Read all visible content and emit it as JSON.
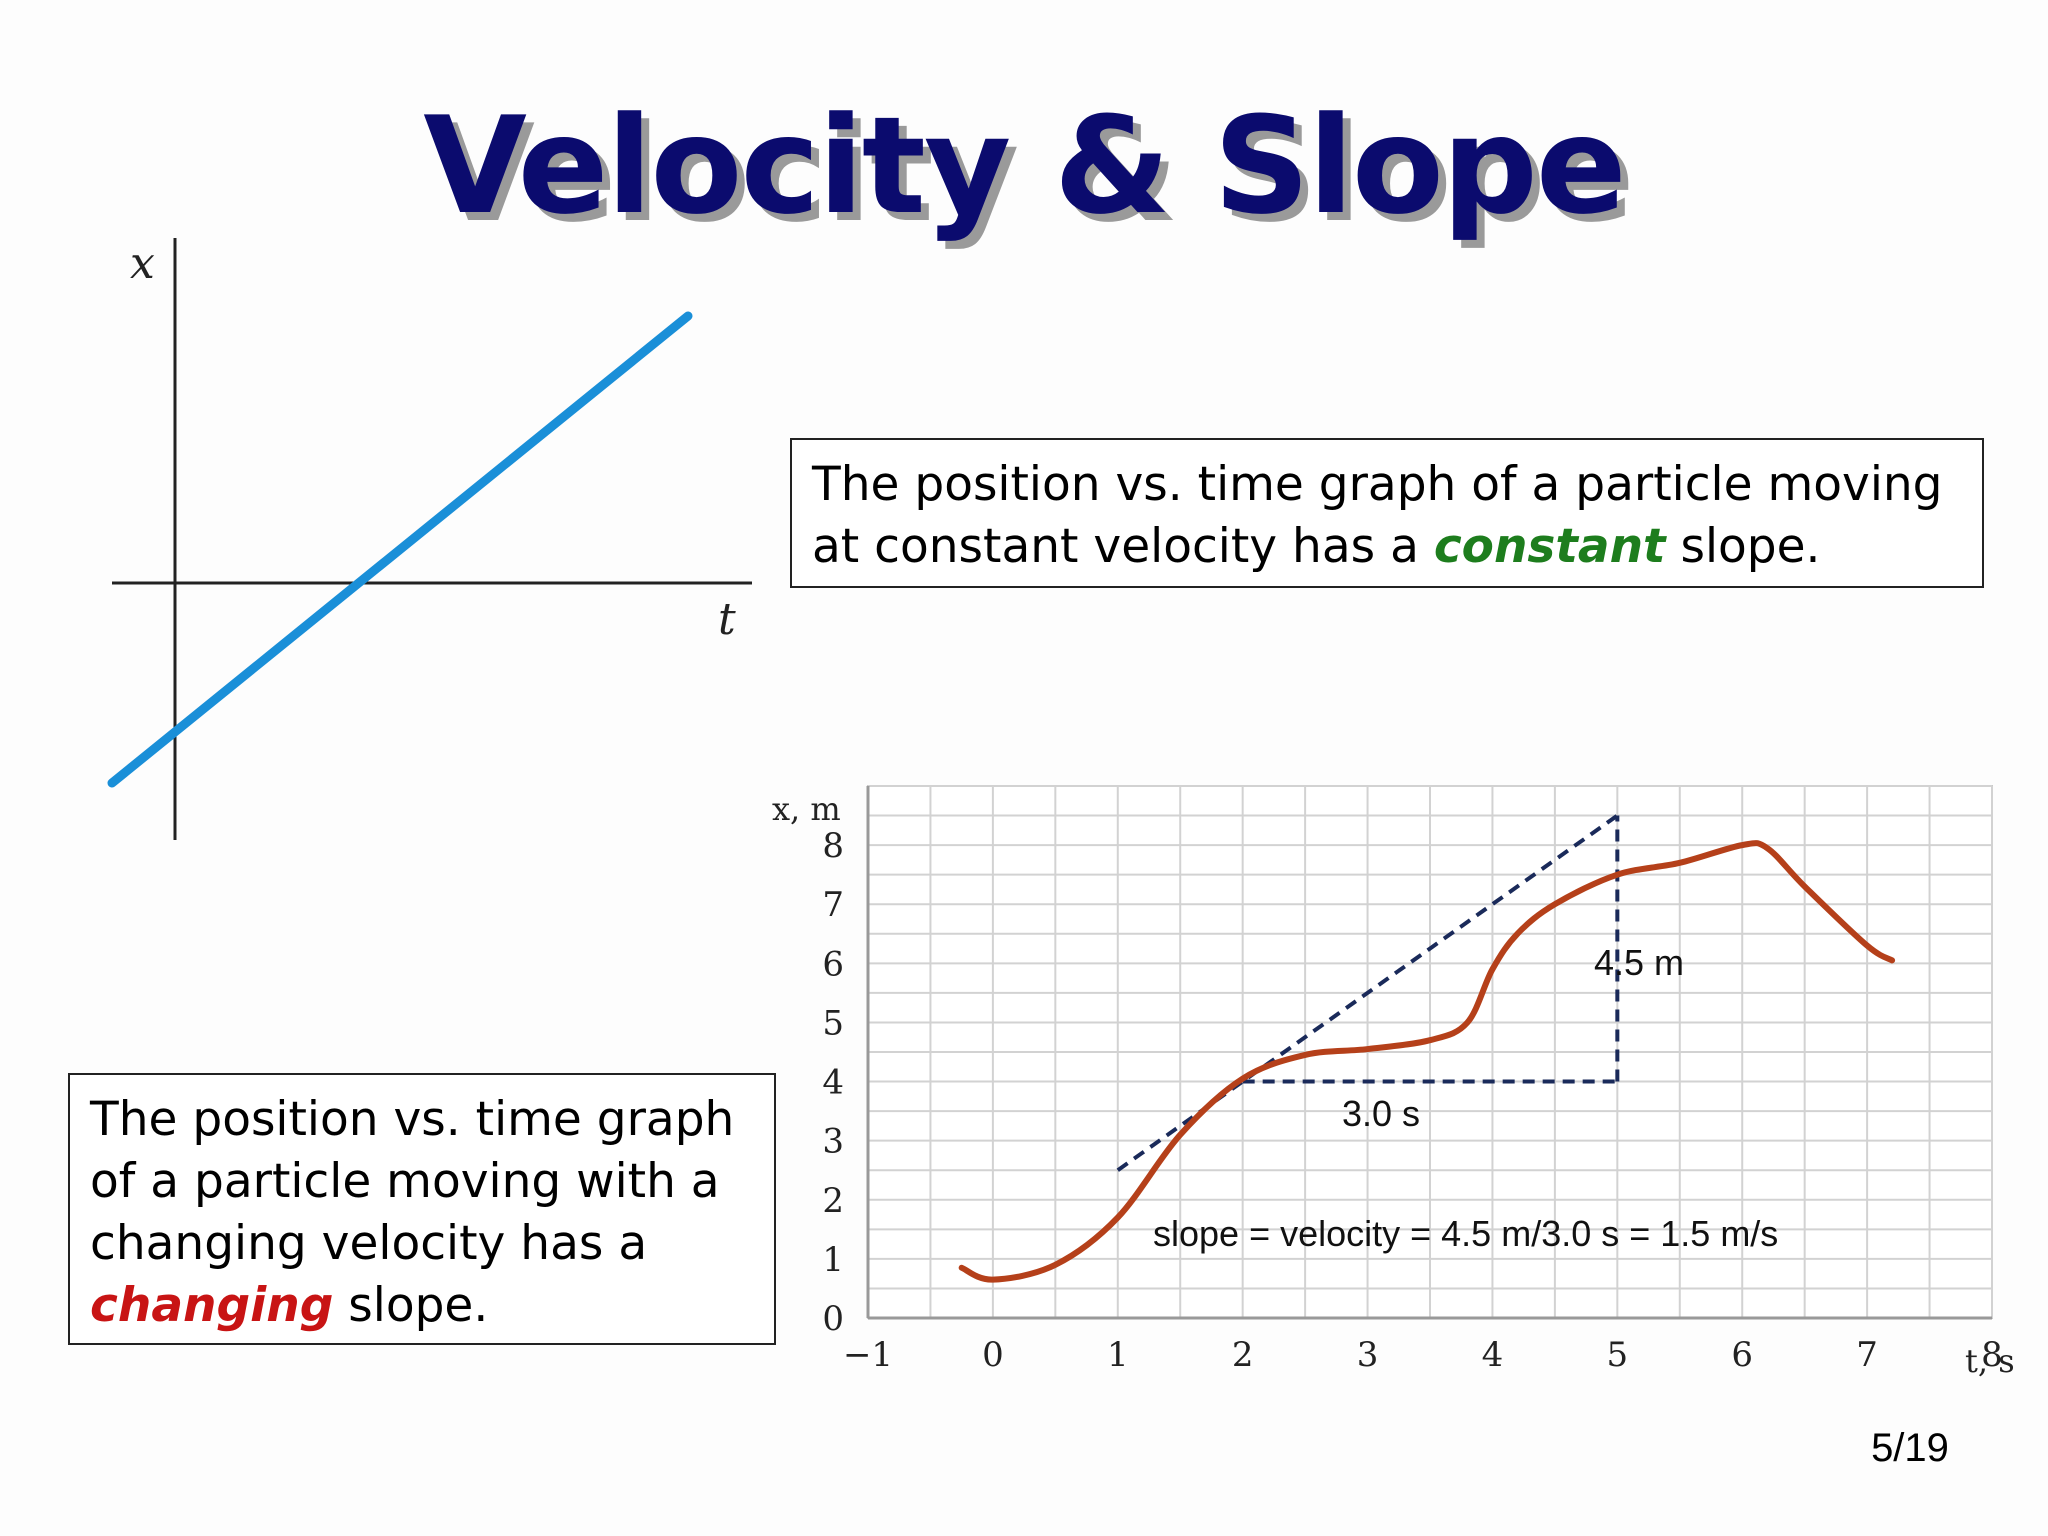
{
  "title": "Velocity & Slope",
  "graph1": {
    "x_label": "x",
    "t_label": "t",
    "line_color": "#1a8fd8"
  },
  "box1": {
    "line1": "The position vs. time graph of a particle moving",
    "line2_before": "at constant velocity has a ",
    "line2_emphasis": "constant",
    "line2_after": " slope."
  },
  "box2": {
    "line1": "The position vs. time graph",
    "line2": "of a particle moving with a",
    "line3": "changing velocity has a",
    "line4_emphasis": "changing",
    "line4_after": " slope."
  },
  "chart_data": {
    "type": "line",
    "xlabel": "t, s",
    "ylabel": "x, m",
    "xlim": [
      -1,
      8
    ],
    "ylim": [
      0,
      9
    ],
    "x_ticks": [
      "−1",
      "0",
      "1",
      "2",
      "3",
      "4",
      "5",
      "6",
      "7",
      "8"
    ],
    "y_ticks": [
      "0",
      "1",
      "2",
      "3",
      "4",
      "5",
      "6",
      "7",
      "8"
    ],
    "grid": true,
    "series": [
      {
        "color": "#b5401a",
        "x": [
          -0.25,
          0,
          0.5,
          1,
          1.5,
          2,
          2.5,
          3,
          3.5,
          3.8,
          4,
          4.2,
          4.5,
          5,
          5.5,
          6,
          6.2,
          6.5,
          7,
          7.2
        ],
        "y": [
          0.85,
          0.65,
          0.9,
          1.7,
          3.1,
          4.05,
          4.45,
          4.55,
          4.7,
          5.0,
          5.9,
          6.5,
          7.0,
          7.5,
          7.7,
          8.0,
          7.95,
          7.3,
          6.3,
          6.05
        ]
      }
    ],
    "tangent": {
      "x": [
        1,
        5
      ],
      "y": [
        2.5,
        8.5
      ]
    },
    "rise_run": {
      "corner_x": 5,
      "corner_y": 4,
      "start_x": 2
    },
    "annotations": {
      "rise": "4.5 m",
      "run": "3.0 s",
      "slope": "slope = velocity = 4.5 m/3.0 s = 1.5 m/s"
    }
  },
  "page_number": "5/19"
}
